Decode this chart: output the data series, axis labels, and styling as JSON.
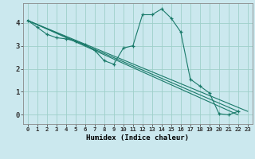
{
  "xlabel": "Humidex (Indice chaleur)",
  "background_color": "#cbe8ee",
  "grid_color": "#9ecfca",
  "line_color": "#1a7a6a",
  "xlim": [
    -0.5,
    23.5
  ],
  "ylim": [
    -0.4,
    4.85
  ],
  "xtick_labels": [
    "0",
    "1",
    "2",
    "3",
    "4",
    "5",
    "6",
    "7",
    "8",
    "9",
    "10",
    "11",
    "12",
    "13",
    "14",
    "15",
    "16",
    "17",
    "18",
    "19",
    "20",
    "21",
    "22",
    "23"
  ],
  "ytick_labels": [
    "0",
    "1",
    "2",
    "3",
    "4"
  ],
  "series_curve": {
    "x": [
      0,
      1,
      2,
      3,
      4,
      5,
      6,
      7,
      8,
      9,
      10,
      11,
      12,
      13,
      14,
      15,
      16,
      17,
      18,
      19,
      20,
      21,
      22
    ],
    "y": [
      4.1,
      3.8,
      3.5,
      3.35,
      3.3,
      3.2,
      3.05,
      2.8,
      2.35,
      2.2,
      2.9,
      3.0,
      4.35,
      4.35,
      4.6,
      4.2,
      3.6,
      1.55,
      1.25,
      0.95,
      0.05,
      0.0,
      0.15
    ]
  },
  "series_lines": [
    {
      "x": [
        0,
        22
      ],
      "y": [
        4.1,
        0.0
      ]
    },
    {
      "x": [
        0,
        23
      ],
      "y": [
        4.1,
        0.15
      ]
    },
    {
      "x": [
        0,
        22
      ],
      "y": [
        4.1,
        0.15
      ]
    }
  ]
}
